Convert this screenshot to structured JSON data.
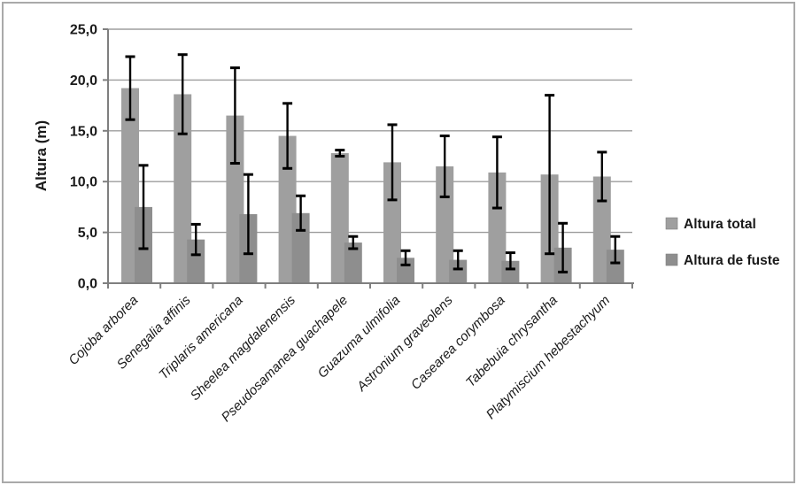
{
  "figure": {
    "background": "#ffffff",
    "border_color": "#a9a9a9"
  },
  "chart_data": {
    "type": "bar",
    "title": "",
    "xlabel": "",
    "ylabel": "Altura (m)",
    "ylim": [
      0,
      25
    ],
    "ytick_step": 5,
    "ytick_labels": [
      "0,0",
      "5,0",
      "10,0",
      "15,0",
      "20,0",
      "25,0"
    ],
    "grid": true,
    "gridline_color": "#9d9d9d",
    "axis_color": "#7f7f7f",
    "error_bar_color": "#000000",
    "legend_position": "right",
    "categories": [
      "Cojoba arborea",
      "Senegalia affinis",
      "Triplaris americana",
      "Sheelea magdalenensis",
      "Pseudosamanea guachapele",
      "Guazuma ulmifolia",
      "Astronium graveolens",
      "Casearea corymbosa",
      "Tabebuia chrysantha",
      "Platymiscium hebestachyum"
    ],
    "series": [
      {
        "name": "Altura total",
        "color": "#9f9f9f",
        "values": [
          19.2,
          18.6,
          16.5,
          14.5,
          12.8,
          11.9,
          11.5,
          10.9,
          10.7,
          10.5
        ],
        "errors": [
          3.1,
          3.9,
          4.7,
          3.2,
          0.3,
          3.7,
          3.0,
          3.5,
          7.8,
          2.4
        ]
      },
      {
        "name": "Altura de fuste",
        "color": "#8e8e8e",
        "values": [
          7.5,
          4.3,
          6.8,
          6.9,
          4.0,
          2.5,
          2.3,
          2.2,
          3.5,
          3.3
        ],
        "errors": [
          4.1,
          1.5,
          3.9,
          1.7,
          0.6,
          0.7,
          0.9,
          0.8,
          2.4,
          1.3
        ]
      }
    ]
  }
}
